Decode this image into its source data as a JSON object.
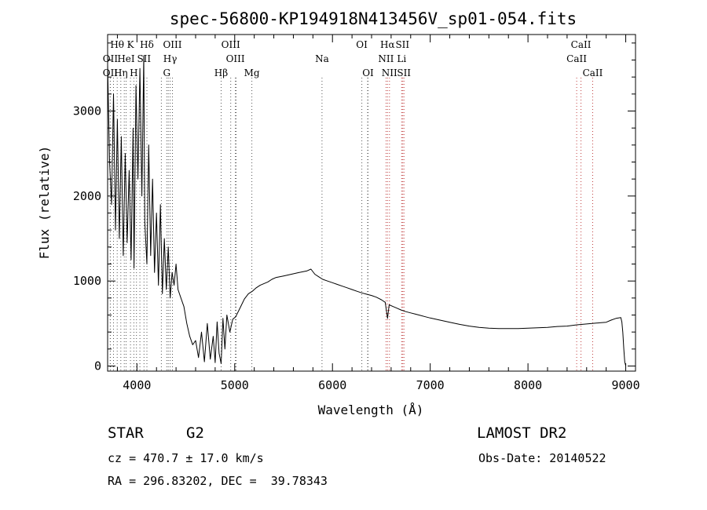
{
  "chart_data": {
    "type": "line",
    "title": "spec-56800-KP194918N413456V_sp01-054.fits",
    "xlabel": "Wavelength (Å)",
    "ylabel": "Flux (relative)",
    "xlim": [
      3700,
      9100
    ],
    "ylim": [
      -60,
      3900
    ],
    "xticks": [
      "4000",
      "5000",
      "6000",
      "7000",
      "8000",
      "9000"
    ],
    "yticks": [
      "0",
      "1000",
      "2000",
      "3000"
    ],
    "series": [
      {
        "x": [
          3700,
          3720,
          3740,
          3760,
          3780,
          3800,
          3820,
          3840,
          3860,
          3880,
          3900,
          3920,
          3940,
          3960,
          3970,
          3990,
          4010,
          4030,
          4050,
          4070,
          4080,
          4102,
          4120,
          4140,
          4160,
          4180,
          4200,
          4220,
          4240,
          4260,
          4280,
          4300,
          4320,
          4340,
          4360,
          4380,
          4400,
          4420,
          4450,
          4480,
          4510,
          4540,
          4570,
          4600,
          4630,
          4660,
          4690,
          4720,
          4750,
          4780,
          4800,
          4820,
          4840,
          4861,
          4880,
          4900,
          4920,
          4950,
          4980,
          5010,
          5040,
          5070,
          5100,
          5140,
          5180,
          5220,
          5260,
          5300,
          5340,
          5380,
          5420,
          5460,
          5500,
          5540,
          5580,
          5620,
          5660,
          5700,
          5740,
          5780,
          5820,
          5860,
          5900,
          5950,
          6000,
          6050,
          6100,
          6150,
          6200,
          6250,
          6300,
          6350,
          6400,
          6450,
          6500,
          6540,
          6563,
          6580,
          6620,
          6660,
          6700,
          6750,
          6800,
          6850,
          6900,
          6950,
          7000,
          7100,
          7200,
          7300,
          7400,
          7500,
          7600,
          7700,
          7800,
          7900,
          8000,
          8100,
          8200,
          8300,
          8400,
          8500,
          8600,
          8700,
          8800,
          8850,
          8900,
          8950,
          8960,
          8970,
          8980,
          8990,
          9000
        ],
        "values": [
          3550,
          2400,
          1900,
          3200,
          1600,
          2900,
          1500,
          2700,
          1300,
          2500,
          1450,
          2300,
          1250,
          2800,
          1150,
          3300,
          2200,
          3500,
          2000,
          3650,
          1700,
          1200,
          2600,
          1300,
          2200,
          1100,
          1800,
          950,
          1900,
          850,
          1500,
          900,
          1400,
          800,
          1100,
          950,
          1200,
          900,
          800,
          700,
          500,
          350,
          250,
          300,
          100,
          400,
          50,
          500,
          80,
          350,
          40,
          520,
          150,
          30,
          560,
          200,
          600,
          400,
          550,
          580,
          650,
          720,
          790,
          850,
          880,
          920,
          950,
          970,
          990,
          1020,
          1040,
          1050,
          1060,
          1070,
          1080,
          1090,
          1100,
          1110,
          1120,
          1140,
          1080,
          1050,
          1020,
          1000,
          980,
          960,
          940,
          920,
          900,
          880,
          860,
          845,
          830,
          810,
          780,
          750,
          560,
          720,
          700,
          680,
          660,
          640,
          625,
          610,
          595,
          580,
          565,
          540,
          515,
          490,
          470,
          455,
          445,
          440,
          440,
          440,
          445,
          450,
          455,
          465,
          470,
          485,
          495,
          505,
          515,
          540,
          560,
          570,
          520,
          400,
          200,
          50,
          0
        ]
      }
    ],
    "lines_top": [
      {
        "label": "Hθ",
        "x": 3798,
        "row": 0
      },
      {
        "label": "K",
        "x": 3934,
        "row": 0
      },
      {
        "label": "Hδ",
        "x": 4102,
        "row": 0
      },
      {
        "label": "OIII",
        "x": 4363,
        "row": 0
      },
      {
        "label": "OIII",
        "x": 4959,
        "row": 0
      },
      {
        "label": "OI",
        "x": 6300,
        "row": 0
      },
      {
        "label": "Hα",
        "x": 6563,
        "row": 0
      },
      {
        "label": "SII",
        "x": 6716,
        "row": 0
      },
      {
        "label": "CaII",
        "x": 8542,
        "row": 0
      },
      {
        "label": "OII",
        "x": 3727,
        "row": 1
      },
      {
        "label": "HeI",
        "x": 3889,
        "row": 1
      },
      {
        "label": "SII",
        "x": 4072,
        "row": 1
      },
      {
        "label": "Hγ",
        "x": 4340,
        "row": 1
      },
      {
        "label": "OIII",
        "x": 5007,
        "row": 1
      },
      {
        "label": "Na",
        "x": 5893,
        "row": 1
      },
      {
        "label": "NII",
        "x": 6548,
        "row": 1
      },
      {
        "label": "Li",
        "x": 6708,
        "row": 1
      },
      {
        "label": "CaII",
        "x": 8498,
        "row": 1
      },
      {
        "label": "OII",
        "x": 3727,
        "row": 2
      },
      {
        "label": "Hη",
        "x": 3835,
        "row": 2
      },
      {
        "label": "H",
        "x": 3968,
        "row": 2
      },
      {
        "label": "G",
        "x": 4305,
        "row": 2
      },
      {
        "label": "Hβ",
        "x": 4861,
        "row": 2
      },
      {
        "label": "Mg",
        "x": 5175,
        "row": 2
      },
      {
        "label": "OI",
        "x": 6364,
        "row": 2
      },
      {
        "label": "NII",
        "x": 6583,
        "row": 2
      },
      {
        "label": "SII",
        "x": 6731,
        "row": 2
      },
      {
        "label": "CaII",
        "x": 8662,
        "row": 2
      }
    ],
    "lines_extra": [
      3760,
      3870,
      3995,
      4030,
      4250,
      4320,
      5015,
      6360,
      6730
    ]
  },
  "info": {
    "class_label": "STAR",
    "subclass": "G2",
    "survey": "LAMOST DR2",
    "cz": "cz = 470.7 ± 17.0 km/s",
    "obs_date": "Obs-Date: 20140522",
    "radec": "RA = 296.83202, DEC =  39.78343"
  }
}
